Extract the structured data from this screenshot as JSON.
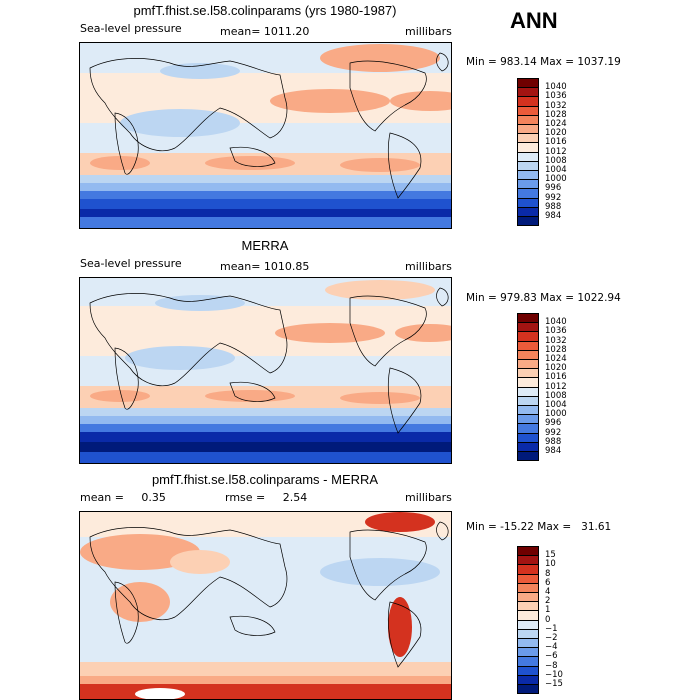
{
  "header": {
    "season": "ANN"
  },
  "panels": [
    {
      "title": "pmfT.fhist.se.l58.colinparams (yrs 1980-1987)",
      "left_label": "Sea-level pressure",
      "center_label": "mean= 1011.20",
      "units": "millibars",
      "minmax": "Min = 983.14 Max = 1037.19",
      "colorbar": {
        "labels": [
          "1040",
          "1036",
          "1032",
          "1028",
          "1024",
          "1020",
          "1016",
          "1012",
          "1008",
          "1004",
          "1000",
          "996",
          "992",
          "988",
          "984"
        ],
        "colors": [
          "#6f0000",
          "#a31412",
          "#d4321f",
          "#ec5b3a",
          "#f4845c",
          "#f9aa86",
          "#fcd0b4",
          "#fdebdc",
          "#deebf7",
          "#bcd6f2",
          "#93baf0",
          "#6b9bea",
          "#4479e0",
          "#1f52cf",
          "#0a2aa8",
          "#001a7a"
        ]
      }
    },
    {
      "title": "MERRA",
      "left_label": "Sea-level pressure",
      "center_label": "mean= 1010.85",
      "units": "millibars",
      "minmax": "Min = 979.83 Max = 1022.94",
      "colorbar": {
        "labels": [
          "1040",
          "1036",
          "1032",
          "1028",
          "1024",
          "1020",
          "1016",
          "1012",
          "1008",
          "1004",
          "1000",
          "996",
          "992",
          "988",
          "984"
        ],
        "colors": [
          "#6f0000",
          "#a31412",
          "#d4321f",
          "#ec5b3a",
          "#f4845c",
          "#f9aa86",
          "#fcd0b4",
          "#fdebdc",
          "#deebf7",
          "#bcd6f2",
          "#93baf0",
          "#6b9bea",
          "#4479e0",
          "#1f52cf",
          "#0a2aa8",
          "#001a7a"
        ]
      }
    },
    {
      "title": "pmfT.fhist.se.l58.colinparams - MERRA",
      "left_label": "mean =     0.35",
      "center_label": "rmse =     2.54",
      "units": "millibars",
      "minmax": "Min = -15.22 Max =   31.61",
      "colorbar": {
        "labels": [
          "15",
          "10",
          "8",
          "6",
          "4",
          "2",
          "1",
          "0",
          "−1",
          "−2",
          "−4",
          "−6",
          "−8",
          "−10",
          "−15"
        ],
        "colors": [
          "#6f0000",
          "#a31412",
          "#d4321f",
          "#ec5b3a",
          "#f4845c",
          "#f9aa86",
          "#fcd0b4",
          "#fdebdc",
          "#deebf7",
          "#bcd6f2",
          "#93baf0",
          "#6b9bea",
          "#4479e0",
          "#1f52cf",
          "#0a2aa8",
          "#001a7a"
        ]
      }
    }
  ]
}
